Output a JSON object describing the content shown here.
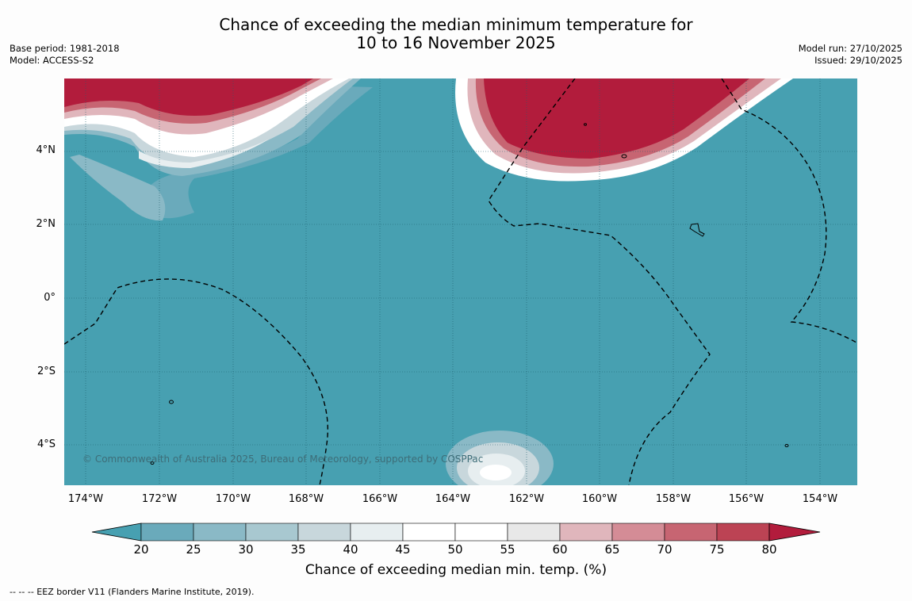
{
  "title": {
    "line1": "Chance of exceeding the median minimum temperature for",
    "line2": "10 to 16 November 2025"
  },
  "meta_left": {
    "base_period": "Base period: 1981-2018",
    "model": "Model: ACCESS-S2"
  },
  "meta_right": {
    "model_run": "Model run: 27/10/2025",
    "issued": "Issued: 29/10/2025"
  },
  "axes": {
    "lat_labels": [
      "4°N",
      "2°N",
      "0°",
      "2°S",
      "4°S"
    ],
    "lon_labels": [
      "174°W",
      "172°W",
      "170°W",
      "168°W",
      "166°W",
      "164°W",
      "162°W",
      "160°W",
      "158°W",
      "156°W",
      "154°W"
    ]
  },
  "copyright": "© Commonwealth of Australia 2025, Bureau of Meteorology, supported by COSPPac",
  "colorbar": {
    "ticks": [
      "20",
      "25",
      "30",
      "35",
      "40",
      "45",
      "50",
      "55",
      "60",
      "65",
      "70",
      "75",
      "80"
    ],
    "colors": [
      "#47a0b1",
      "#6aaabb",
      "#8ab9c6",
      "#a8c8d0",
      "#c8d7dc",
      "#e7eef0",
      "#ffffff",
      "#ffffff",
      "#e8e8e8",
      "#e0b6bc",
      "#d48c96",
      "#c76572",
      "#bc4354",
      "#b21c3c"
    ],
    "title": "Chance of exceeding median min. temp. (%)"
  },
  "footnote": "--  --  -- EEZ border V11 (Flanders Marine Institute, 2019)."
}
